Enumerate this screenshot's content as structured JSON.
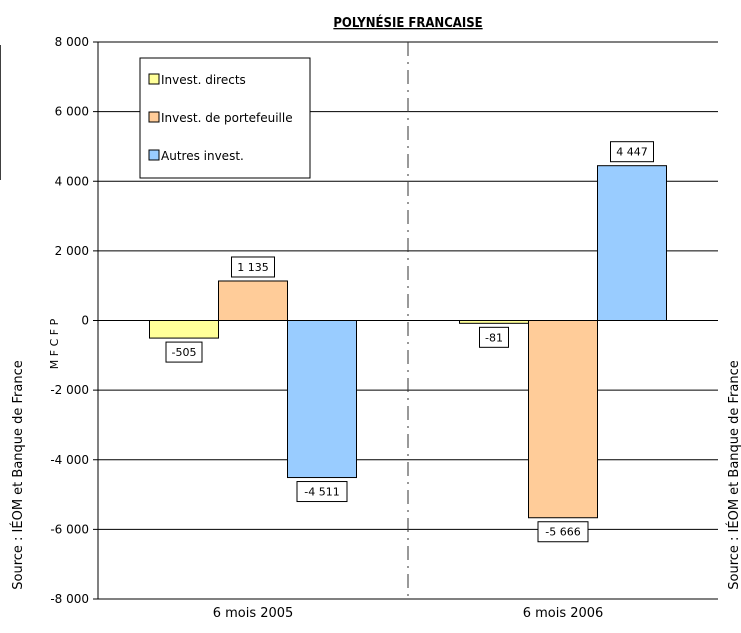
{
  "chart_data": {
    "type": "bar",
    "title": "POLYNÉSIE FRANCAISE",
    "ylabel": "M F C F P",
    "source_label": "Source : IÉOM et Banque de France",
    "categories": [
      "6 mois 2005",
      "6 mois 2006"
    ],
    "series": [
      {
        "name": "Invest. directs",
        "values": [
          -505,
          -81
        ],
        "labels": [
          "-505",
          "-81"
        ],
        "color": "#FFFF99"
      },
      {
        "name": "Invest. de portefeuille",
        "values": [
          1135,
          -5666
        ],
        "labels": [
          "1 135",
          "-5 666"
        ],
        "color": "#FFCC99"
      },
      {
        "name": "Autres invest.",
        "values": [
          -4511,
          4447
        ],
        "labels": [
          "-4 511",
          "4 447"
        ],
        "color": "#99CCFF"
      }
    ],
    "ylim": [
      -8000,
      8000
    ],
    "yticks": [
      8000,
      6000,
      4000,
      2000,
      0,
      -2000,
      -4000,
      -6000,
      -8000
    ],
    "ytick_labels": [
      "8 000",
      "6 000",
      "4 000",
      "2 000",
      "0",
      "-2 000",
      "-4 000",
      "-6 000",
      "-8 000"
    ],
    "grid": true,
    "legend_position": "top-left"
  }
}
